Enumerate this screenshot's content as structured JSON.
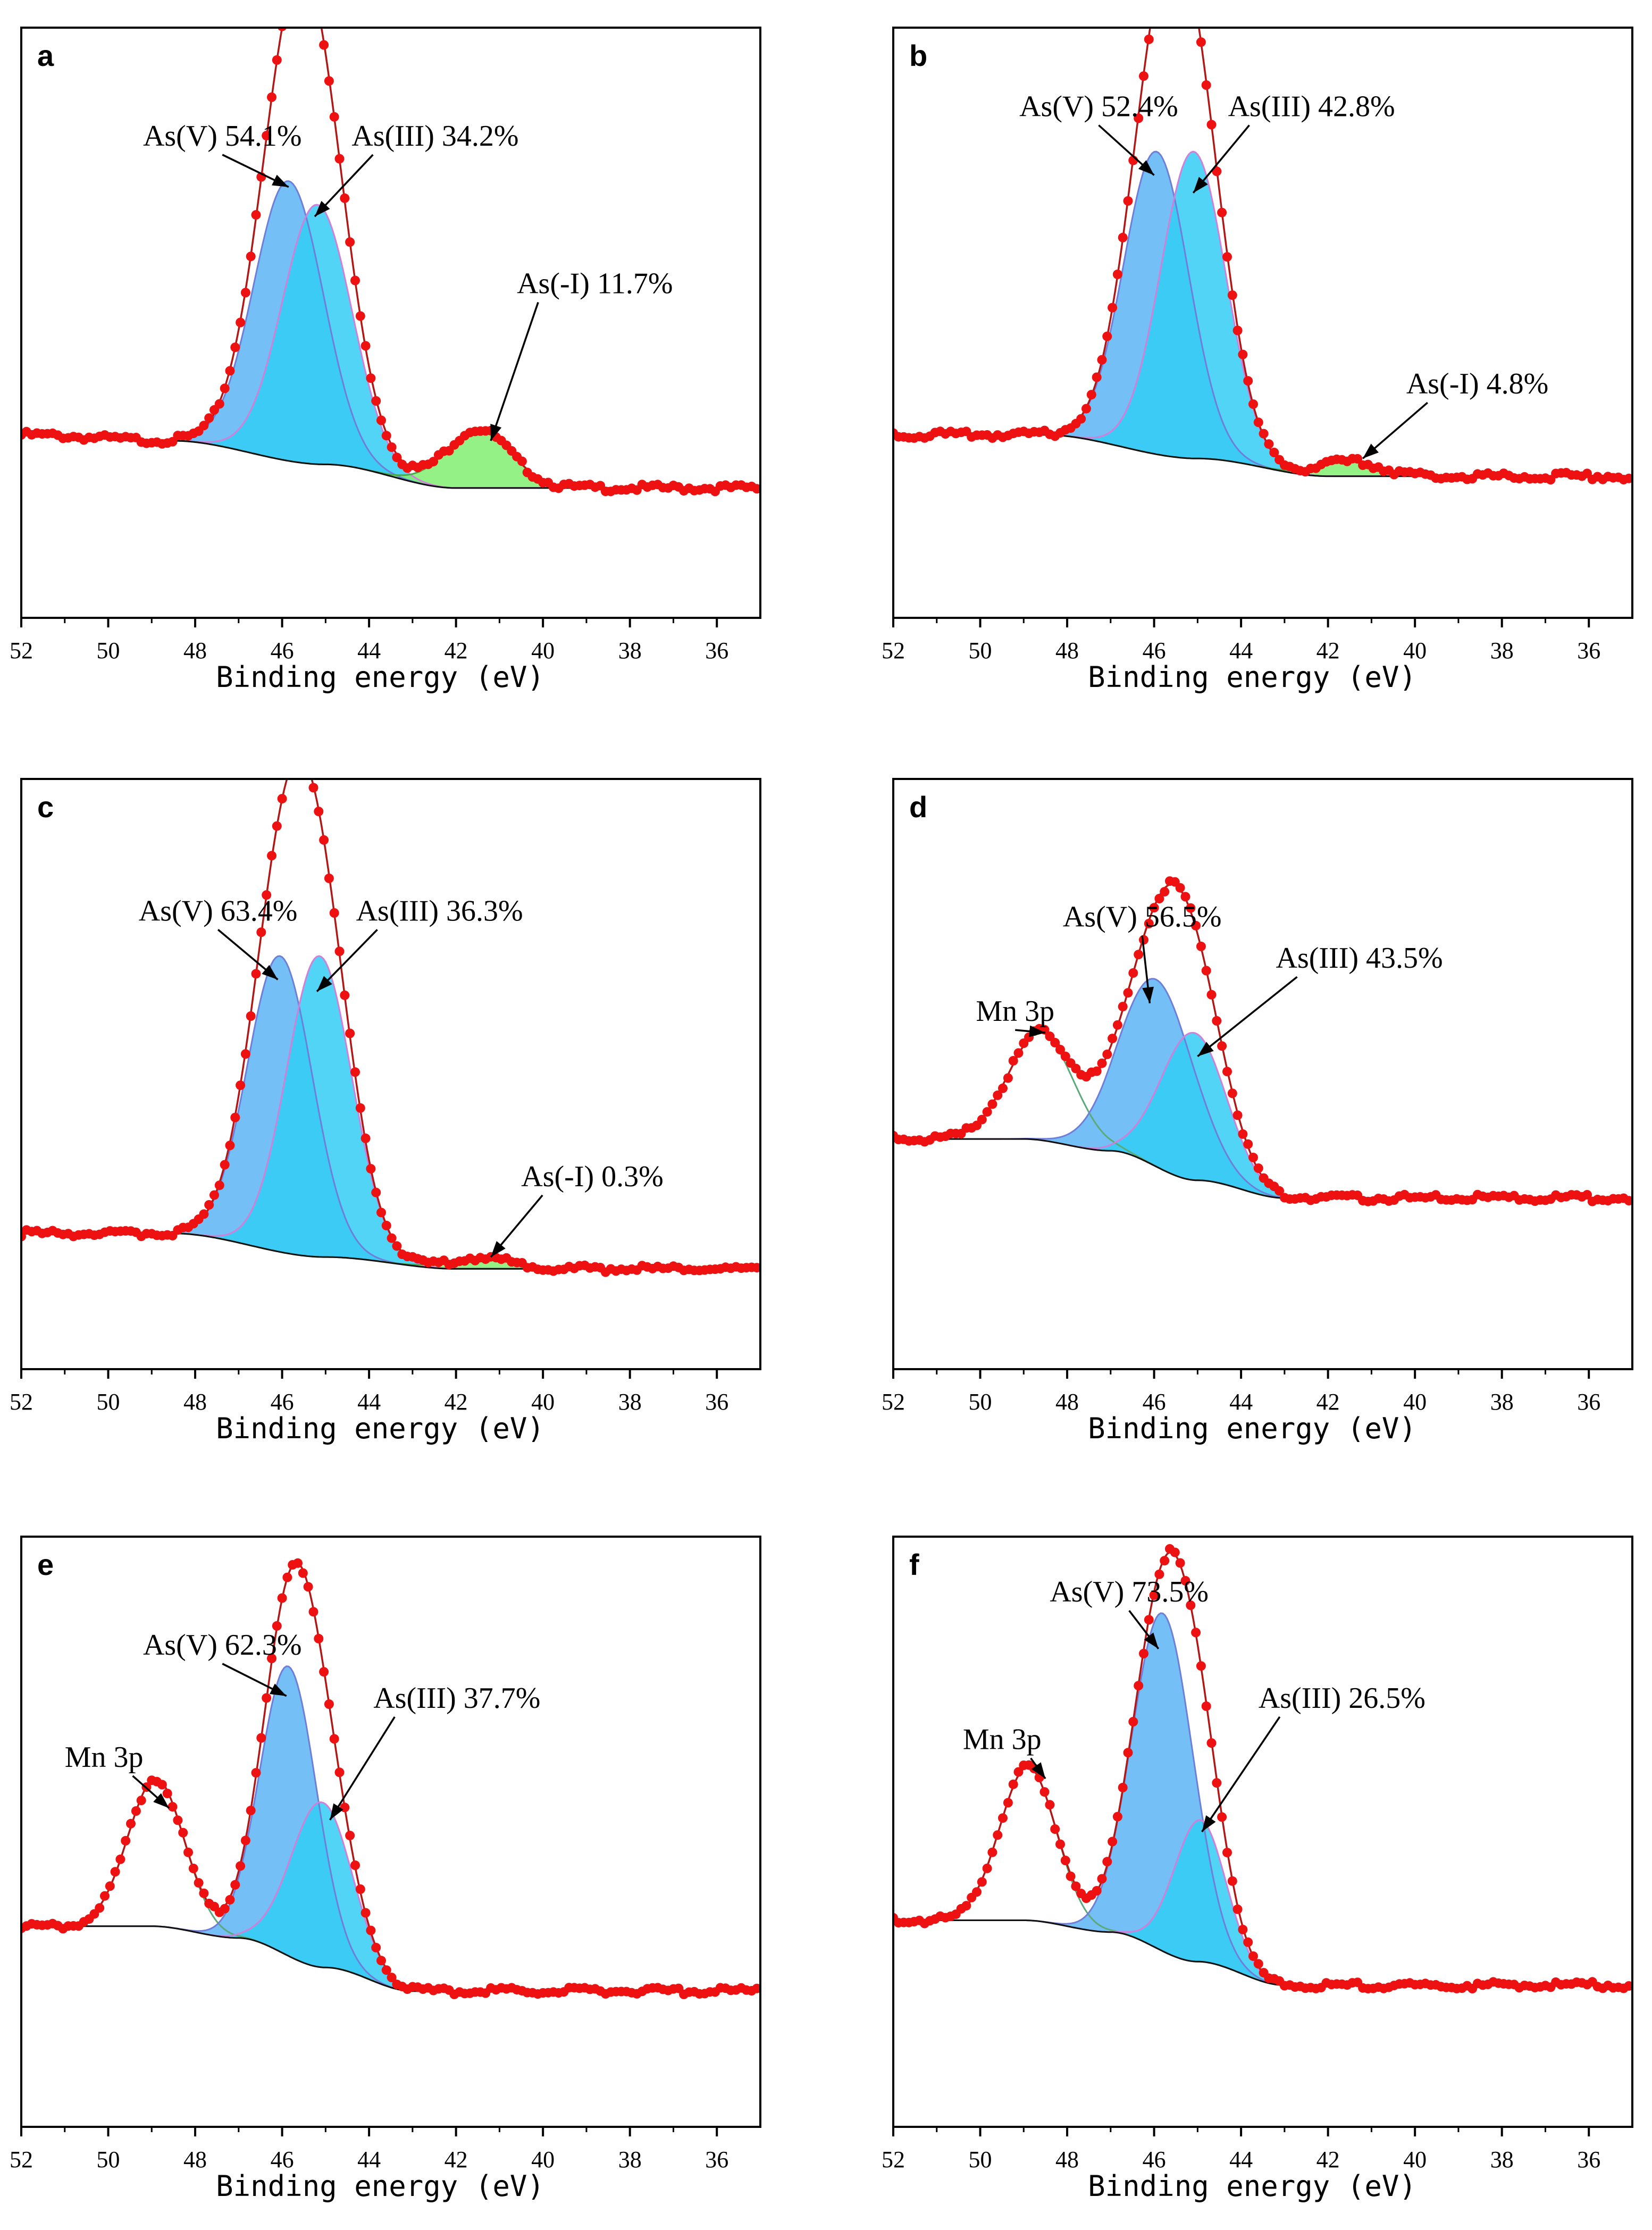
{
  "chart_data": [
    {
      "type": "line",
      "panel": "a",
      "xlabel": "Binding energy (eV)",
      "xlim": [
        52,
        35
      ],
      "xticks": [
        52,
        50,
        48,
        46,
        44,
        42,
        40,
        38,
        36
      ],
      "ylim": [
        0,
        1
      ],
      "background": {
        "x": [
          52,
          48.5,
          45,
          42,
          35
        ],
        "y": [
          0.31,
          0.3,
          0.26,
          0.22,
          0.22
        ]
      },
      "components": [
        {
          "name": "As(V)",
          "percent": "54.1%",
          "center": 45.85,
          "height": 0.74,
          "sigma": 0.8,
          "fill": "#5ab4f5",
          "line": "#6f7fd8"
        },
        {
          "name": "As(III)",
          "percent": "34.2%",
          "center": 45.2,
          "height": 0.7,
          "sigma": 0.8,
          "fill": "#33ccf5",
          "line": "#d080d8"
        },
        {
          "name": "As(-I)",
          "percent": "11.7%",
          "center": 41.5,
          "height": 0.32,
          "sigma": 0.75,
          "fill": "#80ee70",
          "line": "#4aa94a"
        }
      ],
      "annotations": [
        {
          "text": "As(V) 54.1%",
          "x": 49.2,
          "y": 0.8,
          "target": [
            45.85,
            0.73
          ]
        },
        {
          "text": "As(III) 34.2%",
          "x": 44.4,
          "y": 0.8,
          "target": [
            45.25,
            0.68
          ]
        },
        {
          "text": "As(-I) 11.7%",
          "x": 40.6,
          "y": 0.55,
          "target": [
            41.2,
            0.3
          ]
        }
      ]
    },
    {
      "type": "line",
      "panel": "b",
      "xlabel": "Binding energy (eV)",
      "xlim": [
        52,
        35
      ],
      "xticks": [
        52,
        50,
        48,
        46,
        44,
        42,
        40,
        38,
        36
      ],
      "ylim": [
        0,
        1
      ],
      "background": {
        "x": [
          52,
          48.5,
          45,
          42,
          35
        ],
        "y": [
          0.31,
          0.31,
          0.27,
          0.24,
          0.24
        ]
      },
      "components": [
        {
          "name": "As(V)",
          "percent": "52.4%",
          "center": 45.95,
          "height": 0.79,
          "sigma": 0.75,
          "fill": "#5ab4f5",
          "line": "#6f7fd8"
        },
        {
          "name": "As(III)",
          "percent": "42.8%",
          "center": 45.1,
          "height": 0.79,
          "sigma": 0.75,
          "fill": "#33ccf5",
          "line": "#d080d8"
        },
        {
          "name": "As(-I)",
          "percent": "4.8%",
          "center": 41.5,
          "height": 0.265,
          "sigma": 0.7,
          "fill": "#80ee70",
          "line": "#4aa94a"
        }
      ],
      "annotations": [
        {
          "text": "As(V) 52.4%",
          "x": 49.1,
          "y": 0.85,
          "target": [
            46.0,
            0.75
          ]
        },
        {
          "text": "As(III) 42.8%",
          "x": 44.3,
          "y": 0.85,
          "target": [
            45.1,
            0.72
          ]
        },
        {
          "text": "As(-I) 4.8%",
          "x": 40.2,
          "y": 0.38,
          "target": [
            41.2,
            0.27
          ]
        }
      ]
    },
    {
      "type": "line",
      "panel": "c",
      "xlabel": "Binding energy (eV)",
      "xlim": [
        52,
        35
      ],
      "xticks": [
        52,
        50,
        48,
        46,
        44,
        42,
        40,
        38,
        36
      ],
      "ylim": [
        0,
        1
      ],
      "background": {
        "x": [
          52,
          48.5,
          45,
          42,
          35
        ],
        "y": [
          0.23,
          0.23,
          0.19,
          0.17,
          0.17
        ]
      },
      "components": [
        {
          "name": "As(V)",
          "percent": "63.4%",
          "center": 46.05,
          "height": 0.7,
          "sigma": 0.75,
          "fill": "#5ab4f5",
          "line": "#6f7fd8"
        },
        {
          "name": "As(III)",
          "percent": "36.3%",
          "center": 45.15,
          "height": 0.7,
          "sigma": 0.75,
          "fill": "#33ccf5",
          "line": "#d080d8"
        },
        {
          "name": "As(-I)",
          "percent": "0.3%",
          "center": 41.5,
          "height": 0.19,
          "sigma": 0.7,
          "fill": "#80ee70",
          "line": "#4aa94a"
        }
      ],
      "annotations": [
        {
          "text": "As(V) 63.4%",
          "x": 49.3,
          "y": 0.76,
          "target": [
            46.1,
            0.66
          ]
        },
        {
          "text": "As(III) 36.3%",
          "x": 44.3,
          "y": 0.76,
          "target": [
            45.2,
            0.64
          ]
        },
        {
          "text": "As(-I) 0.3%",
          "x": 40.5,
          "y": 0.31,
          "target": [
            41.2,
            0.19
          ]
        }
      ]
    },
    {
      "type": "line",
      "panel": "d",
      "xlabel": "Binding energy (eV)",
      "xlim": [
        52,
        35
      ],
      "xticks": [
        52,
        50,
        48,
        46,
        44,
        42,
        40,
        38,
        36
      ],
      "ylim": [
        0,
        1
      ],
      "background": {
        "x": [
          52,
          49,
          47,
          45,
          43,
          42
        ],
        "y": [
          0.39,
          0.39,
          0.37,
          0.32,
          0.29,
          0.29
        ]
      },
      "components": [
        {
          "name": "Mn 3p",
          "percent": "",
          "center": 48.6,
          "height": 0.57,
          "sigma": 0.75,
          "fill": "none",
          "line": "#5aaa7a"
        },
        {
          "name": "As(V)",
          "percent": "56.5%",
          "center": 45.95,
          "height": 0.66,
          "sigma": 0.85,
          "fill": "#5ab4f5",
          "line": "#6f7fd8"
        },
        {
          "name": "As(III)",
          "percent": "43.5%",
          "center": 45.1,
          "height": 0.57,
          "sigma": 0.75,
          "fill": "#33ccf5",
          "line": "#d080d8"
        }
      ],
      "annotations": [
        {
          "text": "Mn 3p",
          "x": 50.1,
          "y": 0.59,
          "target": [
            48.5,
            0.57
          ]
        },
        {
          "text": "As(V) 56.5%",
          "x": 48.1,
          "y": 0.75,
          "target": [
            46.1,
            0.62
          ]
        },
        {
          "text": "As(III) 43.5%",
          "x": 43.2,
          "y": 0.68,
          "target": [
            45.0,
            0.53
          ]
        }
      ]
    },
    {
      "type": "line",
      "panel": "e",
      "xlabel": "Binding energy (eV)",
      "xlim": [
        52,
        35
      ],
      "xticks": [
        52,
        50,
        48,
        46,
        44,
        42,
        40,
        38,
        36
      ],
      "ylim": [
        0,
        1
      ],
      "background": {
        "x": [
          52,
          49,
          47,
          45,
          43,
          42
        ],
        "y": [
          0.34,
          0.34,
          0.32,
          0.27,
          0.23,
          0.23
        ]
      },
      "components": [
        {
          "name": "Mn 3p",
          "percent": "",
          "center": 48.9,
          "height": 0.59,
          "sigma": 0.65,
          "fill": "none",
          "line": "#5aaa7a"
        },
        {
          "name": "As(V)",
          "percent": "62.3%",
          "center": 45.85,
          "height": 0.78,
          "sigma": 0.65,
          "fill": "#5ab4f5",
          "line": "#6f7fd8"
        },
        {
          "name": "As(III)",
          "percent": "37.7%",
          "center": 45.1,
          "height": 0.55,
          "sigma": 0.7,
          "fill": "#33ccf5",
          "line": "#d080d8"
        }
      ],
      "annotations": [
        {
          "text": "Mn 3p",
          "x": 51.0,
          "y": 0.61,
          "target": [
            48.6,
            0.54
          ]
        },
        {
          "text": "As(V) 62.3%",
          "x": 49.2,
          "y": 0.8,
          "target": [
            45.9,
            0.73
          ]
        },
        {
          "text": "As(III) 37.7%",
          "x": 43.9,
          "y": 0.71,
          "target": [
            44.9,
            0.52
          ]
        }
      ]
    },
    {
      "type": "line",
      "panel": "f",
      "xlabel": "Binding energy (eV)",
      "xlim": [
        52,
        35
      ],
      "xticks": [
        52,
        50,
        48,
        46,
        44,
        42,
        40,
        38,
        36
      ],
      "ylim": [
        0,
        1
      ],
      "background": {
        "x": [
          52,
          49,
          47,
          45,
          43,
          42
        ],
        "y": [
          0.35,
          0.35,
          0.33,
          0.28,
          0.24,
          0.24
        ]
      },
      "components": [
        {
          "name": "Mn 3p",
          "percent": "",
          "center": 48.9,
          "height": 0.61,
          "sigma": 0.65,
          "fill": "none",
          "line": "#5aaa7a"
        },
        {
          "name": "As(V)",
          "percent": "73.5%",
          "center": 45.8,
          "height": 0.87,
          "sigma": 0.7,
          "fill": "#5ab4f5",
          "line": "#6f7fd8"
        },
        {
          "name": "As(III)",
          "percent": "26.5%",
          "center": 44.95,
          "height": 0.52,
          "sigma": 0.6,
          "fill": "#33ccf5",
          "line": "#d080d8"
        }
      ],
      "annotations": [
        {
          "text": "Mn 3p",
          "x": 50.4,
          "y": 0.64,
          "target": [
            48.5,
            0.59
          ]
        },
        {
          "text": "As(V) 73.5%",
          "x": 48.4,
          "y": 0.89,
          "target": [
            45.9,
            0.81
          ]
        },
        {
          "text": "As(III) 26.5%",
          "x": 43.6,
          "y": 0.71,
          "target": [
            44.9,
            0.5
          ]
        }
      ]
    }
  ],
  "colors": {
    "experimental": "#ee1111",
    "envelope": "#b01818",
    "raw_trace": "#333333",
    "background_line": "#111111",
    "arrow": "#000000",
    "axis": "#000000"
  }
}
